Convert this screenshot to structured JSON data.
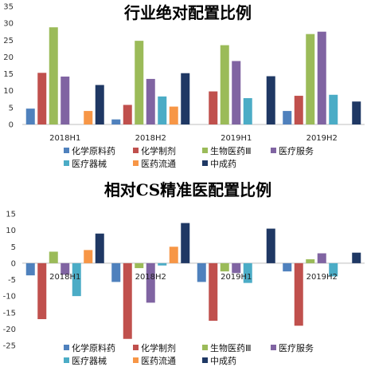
{
  "colors": {
    "化学原料药": "#4f81bd",
    "化学制剂": "#c0504d",
    "生物医药Ⅲ": "#9bbb59",
    "医疗服务": "#8064a2",
    "医疗器械": "#4bacc6",
    "医药流通": "#f79646",
    "中成药": "#1f3864"
  },
  "chart_data": [
    {
      "type": "bar",
      "title": "行业绝对配置比例",
      "categories": [
        "2018H1",
        "2018H2",
        "2019H1",
        "2019H2"
      ],
      "ylim": [
        0,
        35
      ],
      "yticks": [
        0,
        5,
        10,
        15,
        20,
        25,
        30,
        35
      ],
      "grid": false,
      "legend": "bottom",
      "series": [
        {
          "name": "化学原料药",
          "values": [
            4.7,
            1.5,
            0.0,
            4.0
          ]
        },
        {
          "name": "化学制剂",
          "values": [
            15.3,
            5.8,
            9.8,
            8.5
          ]
        },
        {
          "name": "生物医药Ⅲ",
          "values": [
            28.8,
            24.8,
            23.5,
            26.8
          ]
        },
        {
          "name": "医疗服务",
          "values": [
            14.2,
            13.5,
            18.8,
            27.5
          ]
        },
        {
          "name": "医疗器械",
          "values": [
            0.0,
            8.3,
            7.8,
            8.8
          ]
        },
        {
          "name": "医药流通",
          "values": [
            4.0,
            5.3,
            0.0,
            0.0
          ]
        },
        {
          "name": "中成药",
          "values": [
            11.7,
            15.2,
            14.3,
            6.8
          ]
        }
      ]
    },
    {
      "type": "bar",
      "title": "相对CS精准医配置比例",
      "categories": [
        "2018H1",
        "2018H2",
        "2019H1",
        "2019H2"
      ],
      "ylim": [
        -25,
        15
      ],
      "yticks": [
        -25,
        -20,
        -15,
        -10,
        -5,
        0,
        5,
        10,
        15
      ],
      "grid": false,
      "legend": "bottom",
      "series": [
        {
          "name": "化学原料药",
          "values": [
            -3.7,
            -5.7,
            -5.7,
            -2.5
          ]
        },
        {
          "name": "化学制剂",
          "values": [
            -17.0,
            -23.0,
            -17.5,
            -19.0
          ]
        },
        {
          "name": "生物医药Ⅲ",
          "values": [
            3.5,
            -1.5,
            -2.5,
            1.2
          ]
        },
        {
          "name": "医疗服务",
          "values": [
            -3.5,
            -12.0,
            -3.0,
            3.0
          ]
        },
        {
          "name": "医疗器械",
          "values": [
            -10.0,
            -0.7,
            -6.0,
            -4.0
          ]
        },
        {
          "name": "医药流通",
          "values": [
            4.0,
            5.0,
            0.0,
            0.0
          ]
        },
        {
          "name": "中成药",
          "values": [
            9.0,
            12.2,
            10.5,
            3.2
          ]
        }
      ]
    }
  ]
}
